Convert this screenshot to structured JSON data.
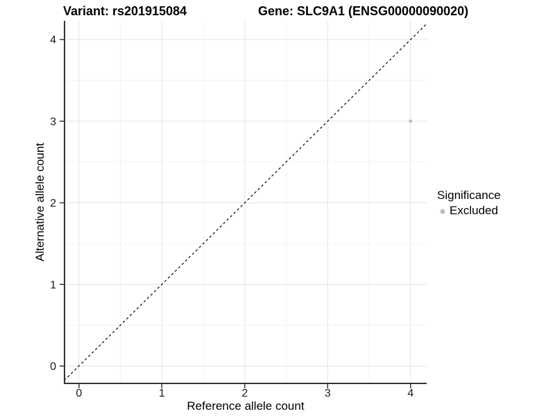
{
  "header": {
    "variant_title": "Variant: rs201915084",
    "gene_title": "Gene: SLC9A1 (ENSG00000090020)"
  },
  "chart_data": {
    "type": "scatter",
    "xlabel": "Reference allele count",
    "ylabel": "Alternative allele count",
    "x_ticks": [
      "0",
      "1",
      "2",
      "3",
      "4"
    ],
    "y_ticks": [
      "0",
      "1",
      "2",
      "3",
      "4"
    ],
    "xlim": [
      -0.18,
      4.19
    ],
    "ylim": [
      -0.21,
      4.23
    ],
    "grid": {
      "major_color": "#e3e3e3",
      "minor_color": "#f2f2f2",
      "minor_step": 0.5
    },
    "identity_line": {
      "description": "y = x",
      "style": "dashed",
      "color": "#000000"
    },
    "series": [
      {
        "name": "Excluded",
        "color": "#bcbcbc",
        "points": [
          {
            "x": 4,
            "y": 3
          }
        ]
      }
    ],
    "legend": {
      "title": "Significance",
      "position": "right",
      "items": [
        {
          "label": "Excluded",
          "color": "#bcbcbc"
        }
      ]
    }
  },
  "colors": {
    "background": "#ffffff",
    "axis_line": "#333333",
    "tick_mark": "#333333",
    "text": "#000000"
  }
}
